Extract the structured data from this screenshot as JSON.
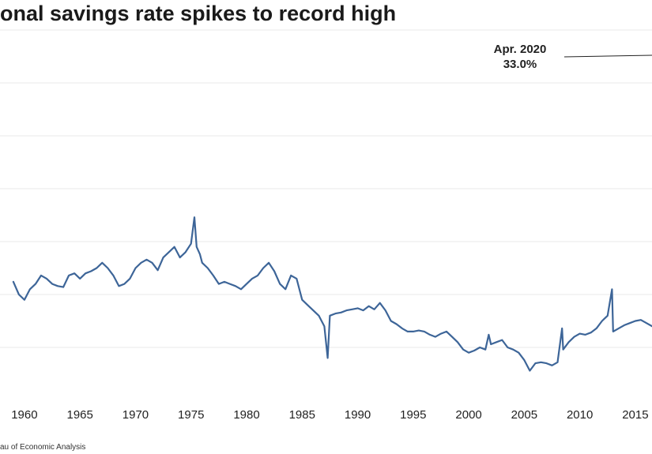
{
  "title": "onal savings rate spikes to record high",
  "source": "au of Economic Analysis",
  "colors": {
    "line": "#3d6598",
    "grid": "#e8e8e8",
    "text": "#222222"
  },
  "chart_data": {
    "type": "line",
    "title": "onal savings rate spikes to record high",
    "xlabel": "",
    "ylabel": "",
    "x_ticks": [
      1960,
      1965,
      1970,
      1975,
      1980,
      1985,
      1990,
      1995,
      2000,
      2005,
      2010,
      2015
    ],
    "xlim": [
      1957.8,
      2016.5
    ],
    "ylim": [
      0,
      35
    ],
    "grid": true,
    "annotation": {
      "date": "Apr. 2020",
      "value": "33.0%"
    },
    "series": [
      {
        "name": "",
        "x": [
          1959.0,
          1959.5,
          1960.0,
          1960.5,
          1961.0,
          1961.5,
          1962.0,
          1962.5,
          1963.0,
          1963.5,
          1964.0,
          1964.5,
          1965.0,
          1965.5,
          1966.0,
          1966.5,
          1967.0,
          1967.5,
          1968.0,
          1968.5,
          1969.0,
          1969.5,
          1970.0,
          1970.5,
          1971.0,
          1971.5,
          1972.0,
          1972.5,
          1973.0,
          1973.5,
          1974.0,
          1974.5,
          1975.0,
          1975.3,
          1975.5,
          1975.8,
          1976.0,
          1976.5,
          1977.0,
          1977.5,
          1978.0,
          1978.5,
          1979.0,
          1979.5,
          1980.0,
          1980.5,
          1981.0,
          1981.5,
          1982.0,
          1982.5,
          1983.0,
          1983.5,
          1984.0,
          1984.5,
          1985.0,
          1985.5,
          1986.0,
          1986.5,
          1987.0,
          1987.3,
          1987.5,
          1988.0,
          1988.5,
          1989.0,
          1989.5,
          1990.0,
          1990.5,
          1991.0,
          1991.5,
          1992.0,
          1992.5,
          1993.0,
          1993.5,
          1994.0,
          1994.5,
          1995.0,
          1995.5,
          1996.0,
          1996.5,
          1997.0,
          1997.5,
          1998.0,
          1998.5,
          1999.0,
          1999.5,
          2000.0,
          2000.5,
          2001.0,
          2001.5,
          2001.8,
          2002.0,
          2002.5,
          2003.0,
          2003.5,
          2004.0,
          2004.5,
          2005.0,
          2005.5,
          2006.0,
          2006.5,
          2007.0,
          2007.5,
          2008.0,
          2008.4,
          2008.5,
          2009.0,
          2009.5,
          2010.0,
          2010.5,
          2011.0,
          2011.5,
          2012.0,
          2012.5,
          2012.9,
          2013.0,
          2013.5,
          2014.0,
          2014.5,
          2015.0,
          2015.5,
          2016.0,
          2016.5
        ],
        "y": [
          11.2,
          10.0,
          9.5,
          10.5,
          11.0,
          11.8,
          11.5,
          11.0,
          10.8,
          10.7,
          11.8,
          12.0,
          11.5,
          12.0,
          12.2,
          12.5,
          13.0,
          12.5,
          11.8,
          10.8,
          11.0,
          11.5,
          12.5,
          13.0,
          13.3,
          13.0,
          12.3,
          13.5,
          14.0,
          14.5,
          13.5,
          14.0,
          14.8,
          17.3,
          14.5,
          13.8,
          13.0,
          12.5,
          11.8,
          11.0,
          11.2,
          11.0,
          10.8,
          10.5,
          11.0,
          11.5,
          11.8,
          12.5,
          13.0,
          12.2,
          11.0,
          10.5,
          11.8,
          11.5,
          9.5,
          9.0,
          8.5,
          8.0,
          7.0,
          4.0,
          8.0,
          8.2,
          8.3,
          8.5,
          8.6,
          8.7,
          8.5,
          8.9,
          8.6,
          9.2,
          8.5,
          7.5,
          7.2,
          6.8,
          6.5,
          6.5,
          6.6,
          6.5,
          6.2,
          6.0,
          6.3,
          6.5,
          6.0,
          5.5,
          4.8,
          4.5,
          4.7,
          5.0,
          4.8,
          6.2,
          5.3,
          5.5,
          5.7,
          5.0,
          4.8,
          4.5,
          3.8,
          2.8,
          3.5,
          3.6,
          3.5,
          3.3,
          3.6,
          6.8,
          4.8,
          5.5,
          6.0,
          6.3,
          6.2,
          6.4,
          6.8,
          7.5,
          8.0,
          10.5,
          6.5,
          6.8,
          7.1,
          7.3,
          7.5,
          7.6,
          7.3,
          7.0
        ]
      }
    ]
  }
}
